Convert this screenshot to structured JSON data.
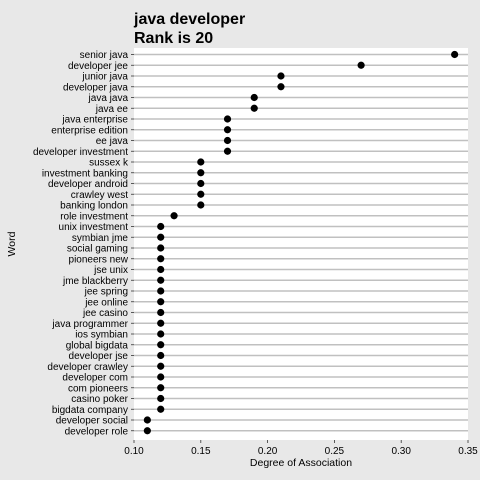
{
  "chart_data": {
    "type": "scatter",
    "title": "java developer",
    "subtitle": "Rank is 20",
    "xlabel": "Degree of Association",
    "ylabel": "Word",
    "xlim": [
      0.1,
      0.35
    ],
    "xticks": [
      "0.10",
      "0.15",
      "0.20",
      "0.25",
      "0.30",
      "0.35"
    ],
    "grid": true,
    "legend": "none",
    "colors": {
      "background": "#e8e8e8",
      "panel": "#ffffff",
      "gridline": "#c0c0c0",
      "point": "#000000"
    },
    "categories": [
      "senior java",
      "developer jee",
      "junior java",
      "developer java",
      "java java",
      "java ee",
      "java enterprise",
      "enterprise edition",
      "ee java",
      "developer investment",
      "sussex k",
      "investment banking",
      "developer android",
      "crawley west",
      "banking london",
      "role investment",
      "unix investment",
      "symbian jme",
      "social gaming",
      "pioneers new",
      "jse unix",
      "jme blackberry",
      "jee spring",
      "jee online",
      "jee casino",
      "java programmer",
      "ios symbian",
      "global bigdata",
      "developer jse",
      "developer crawley",
      "developer com",
      "com pioneers",
      "casino poker",
      "bigdata company",
      "developer social",
      "developer role"
    ],
    "values": [
      0.34,
      0.27,
      0.21,
      0.21,
      0.19,
      0.19,
      0.17,
      0.17,
      0.17,
      0.17,
      0.15,
      0.15,
      0.15,
      0.15,
      0.15,
      0.13,
      0.12,
      0.12,
      0.12,
      0.12,
      0.12,
      0.12,
      0.12,
      0.12,
      0.12,
      0.12,
      0.12,
      0.12,
      0.12,
      0.12,
      0.12,
      0.12,
      0.12,
      0.12,
      0.11,
      0.11
    ]
  }
}
